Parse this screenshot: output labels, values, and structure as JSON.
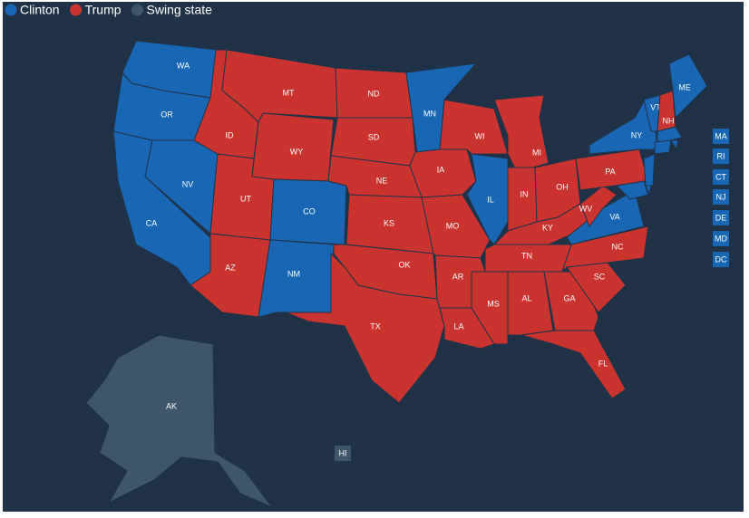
{
  "legend": [
    {
      "label": "Clinton",
      "color": "#1866b4"
    },
    {
      "label": "Trump",
      "color": "#cb342e"
    },
    {
      "label": "Swing state",
      "color": "#3d566c"
    }
  ],
  "states": [
    {
      "abbr": "WA",
      "party": "Clinton"
    },
    {
      "abbr": "OR",
      "party": "Clinton"
    },
    {
      "abbr": "CA",
      "party": "Clinton"
    },
    {
      "abbr": "NV",
      "party": "Clinton"
    },
    {
      "abbr": "ID",
      "party": "Trump"
    },
    {
      "abbr": "MT",
      "party": "Trump"
    },
    {
      "abbr": "WY",
      "party": "Trump"
    },
    {
      "abbr": "UT",
      "party": "Trump"
    },
    {
      "abbr": "CO",
      "party": "Clinton"
    },
    {
      "abbr": "AZ",
      "party": "Trump"
    },
    {
      "abbr": "NM",
      "party": "Clinton"
    },
    {
      "abbr": "ND",
      "party": "Trump"
    },
    {
      "abbr": "SD",
      "party": "Trump"
    },
    {
      "abbr": "NE",
      "party": "Trump"
    },
    {
      "abbr": "KS",
      "party": "Trump"
    },
    {
      "abbr": "OK",
      "party": "Trump"
    },
    {
      "abbr": "TX",
      "party": "Trump"
    },
    {
      "abbr": "MN",
      "party": "Clinton"
    },
    {
      "abbr": "IA",
      "party": "Trump"
    },
    {
      "abbr": "MO",
      "party": "Trump"
    },
    {
      "abbr": "AR",
      "party": "Trump"
    },
    {
      "abbr": "LA",
      "party": "Trump"
    },
    {
      "abbr": "WI",
      "party": "Trump"
    },
    {
      "abbr": "IL",
      "party": "Clinton"
    },
    {
      "abbr": "MI",
      "party": "Trump"
    },
    {
      "abbr": "IN",
      "party": "Trump"
    },
    {
      "abbr": "OH",
      "party": "Trump"
    },
    {
      "abbr": "KY",
      "party": "Trump"
    },
    {
      "abbr": "TN",
      "party": "Trump"
    },
    {
      "abbr": "MS",
      "party": "Trump"
    },
    {
      "abbr": "AL",
      "party": "Trump"
    },
    {
      "abbr": "GA",
      "party": "Trump"
    },
    {
      "abbr": "FL",
      "party": "Trump"
    },
    {
      "abbr": "SC",
      "party": "Trump"
    },
    {
      "abbr": "NC",
      "party": "Trump"
    },
    {
      "abbr": "VA",
      "party": "Clinton"
    },
    {
      "abbr": "WV",
      "party": "Trump"
    },
    {
      "abbr": "PA",
      "party": "Trump"
    },
    {
      "abbr": "NY",
      "party": "Clinton"
    },
    {
      "abbr": "VT",
      "party": "Clinton"
    },
    {
      "abbr": "NH",
      "party": "Trump"
    },
    {
      "abbr": "ME",
      "party": "Clinton"
    },
    {
      "abbr": "MA",
      "party": "Clinton"
    },
    {
      "abbr": "RI",
      "party": "Clinton"
    },
    {
      "abbr": "CT",
      "party": "Clinton"
    },
    {
      "abbr": "NJ",
      "party": "Clinton"
    },
    {
      "abbr": "DE",
      "party": "Clinton"
    },
    {
      "abbr": "MD",
      "party": "Clinton"
    },
    {
      "abbr": "DC",
      "party": "Clinton"
    },
    {
      "abbr": "AK",
      "party": "Swing state"
    },
    {
      "abbr": "HI",
      "party": "Swing state"
    }
  ]
}
